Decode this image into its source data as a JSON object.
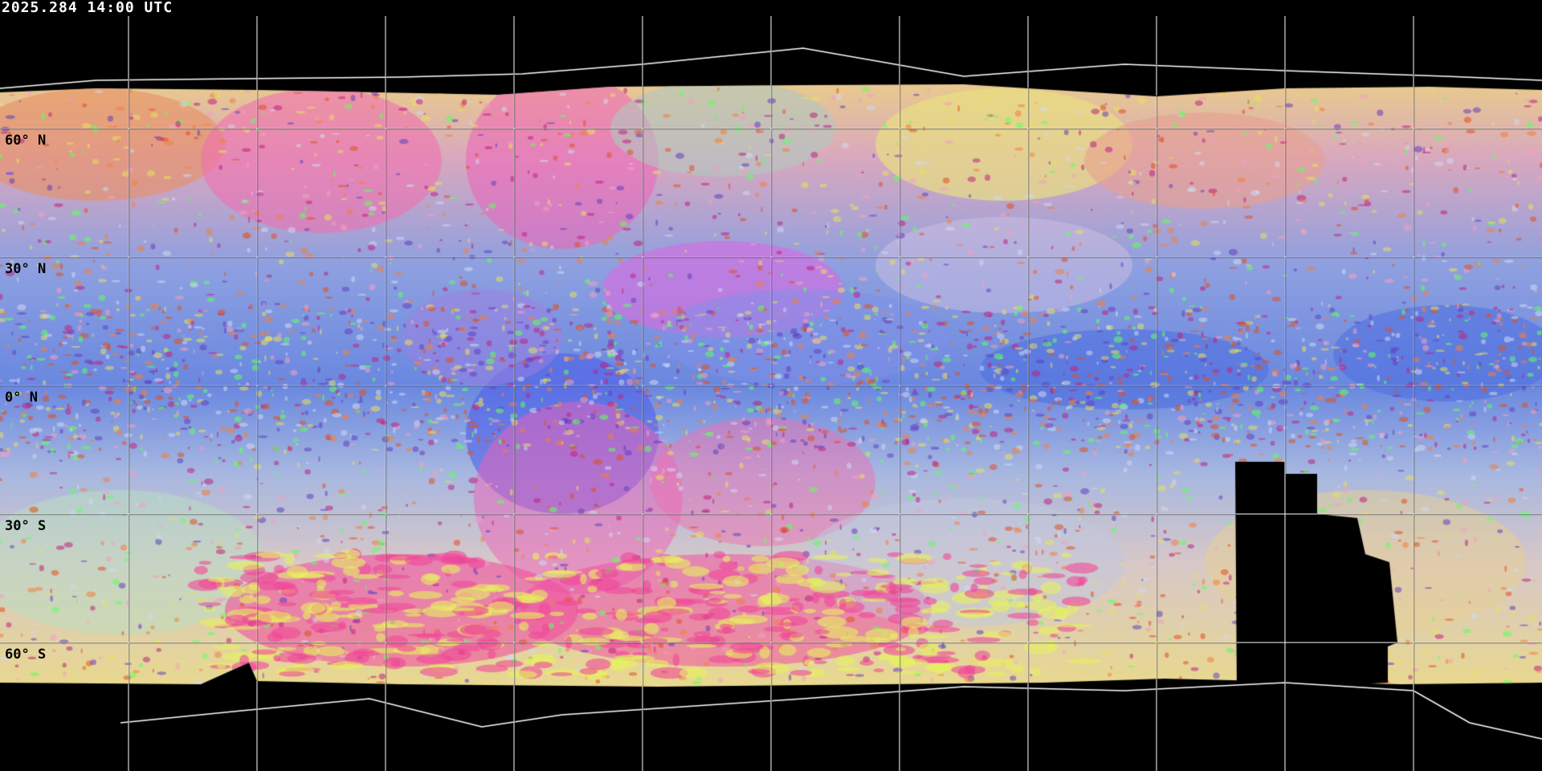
{
  "title": "2025.284 14:00 UTC",
  "projection": "equirectangular",
  "grid_spacing_degrees": 30,
  "latitude_labels": [
    "60° N",
    "30° N",
    "0° N",
    "30° S",
    "60° S"
  ],
  "colors": {
    "background": "#000000",
    "grid_over_imagery": "#000000",
    "grid_over_background": "#ffffff",
    "title_text": "#ffffff",
    "label_text": "#000000",
    "ocean_clear": "#8ea0e0",
    "tropical_clear": "#5a78e0",
    "dust_pink": "#f060b8",
    "polar_cloud": "#e8d890",
    "deep_convection": "#e05020",
    "cold_tops": "#60ff60"
  }
}
